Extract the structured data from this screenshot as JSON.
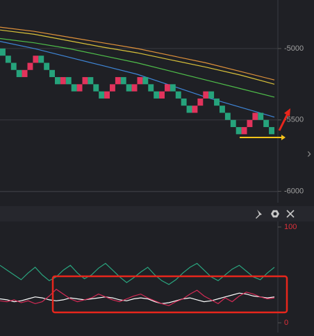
{
  "chart_data": [
    {
      "type": "renko",
      "up_color": "#e2335c",
      "down_color": "#26a37c",
      "values": [
        -5000,
        -5050,
        -5100,
        -5150,
        -5200,
        -5150,
        -5100,
        -5050,
        -5100,
        -5150,
        -5200,
        -5250,
        -5200,
        -5250,
        -5300,
        -5250,
        -5200,
        -5250,
        -5300,
        -5350,
        -5300,
        -5250,
        -5200,
        -5250,
        -5300,
        -5250,
        -5200,
        -5250,
        -5300,
        -5350,
        -5300,
        -5250,
        -5300,
        -5350,
        -5400,
        -5450,
        -5400,
        -5350,
        -5300,
        -5350,
        -5400,
        -5450,
        -5500,
        -5550,
        -5600,
        -5550,
        -5500,
        -5450,
        -5500,
        -5550,
        -5600
      ],
      "series": [
        {
          "color": "#e0923a",
          "values": [
            -4850,
            -4880,
            -4920,
            -4960,
            -5000,
            -5050,
            -5100,
            -5160,
            -5220
          ]
        },
        {
          "color": "#d9c23a",
          "values": [
            -4870,
            -4900,
            -4945,
            -4990,
            -5030,
            -5080,
            -5130,
            -5185,
            -5250
          ]
        },
        {
          "color": "#4fbf4a",
          "values": [
            -4930,
            -4960,
            -5000,
            -5050,
            -5100,
            -5160,
            -5220,
            -5280,
            -5340
          ]
        },
        {
          "color": "#3f86d8",
          "values": [
            -4950,
            -5000,
            -5060,
            -5120,
            -5180,
            -5260,
            -5340,
            -5410,
            -5480
          ]
        }
      ],
      "ylim": [
        -6070,
        -4660
      ],
      "yticks": [
        -5000,
        -5500,
        -6000
      ],
      "grid": true
    },
    {
      "type": "line",
      "series": [
        {
          "color": "#2aa57f",
          "values": [
            60,
            55,
            50,
            45,
            52,
            58,
            50,
            44,
            48,
            55,
            60,
            52,
            46,
            50,
            57,
            62,
            55,
            48,
            42,
            47,
            53,
            58,
            50,
            44,
            40,
            45,
            52,
            58,
            62,
            55,
            48,
            44,
            50,
            56,
            60,
            54,
            48,
            45,
            52,
            58
          ]
        },
        {
          "color": "#ffffff",
          "values": [
            25,
            24,
            22,
            23,
            25,
            27,
            26,
            24,
            23,
            24,
            26,
            25,
            24,
            25,
            26,
            27,
            26,
            24,
            23,
            25,
            26,
            25,
            22,
            20,
            21,
            23,
            25,
            26,
            24,
            22,
            23,
            25,
            27,
            29,
            31,
            30,
            28,
            27,
            26,
            27
          ]
        },
        {
          "color": "#d42a55",
          "values": [
            23,
            22,
            24,
            21,
            23,
            20,
            22,
            28,
            35,
            30,
            25,
            22,
            24,
            26,
            30,
            27,
            24,
            22,
            25,
            28,
            30,
            26,
            23,
            20,
            18,
            22,
            25,
            30,
            34,
            28,
            24,
            20,
            26,
            22,
            28,
            32,
            30,
            27,
            25,
            26
          ]
        }
      ],
      "ylim": [
        0,
        100
      ],
      "yticks": [
        100,
        0
      ],
      "grid": false
    }
  ]
}
